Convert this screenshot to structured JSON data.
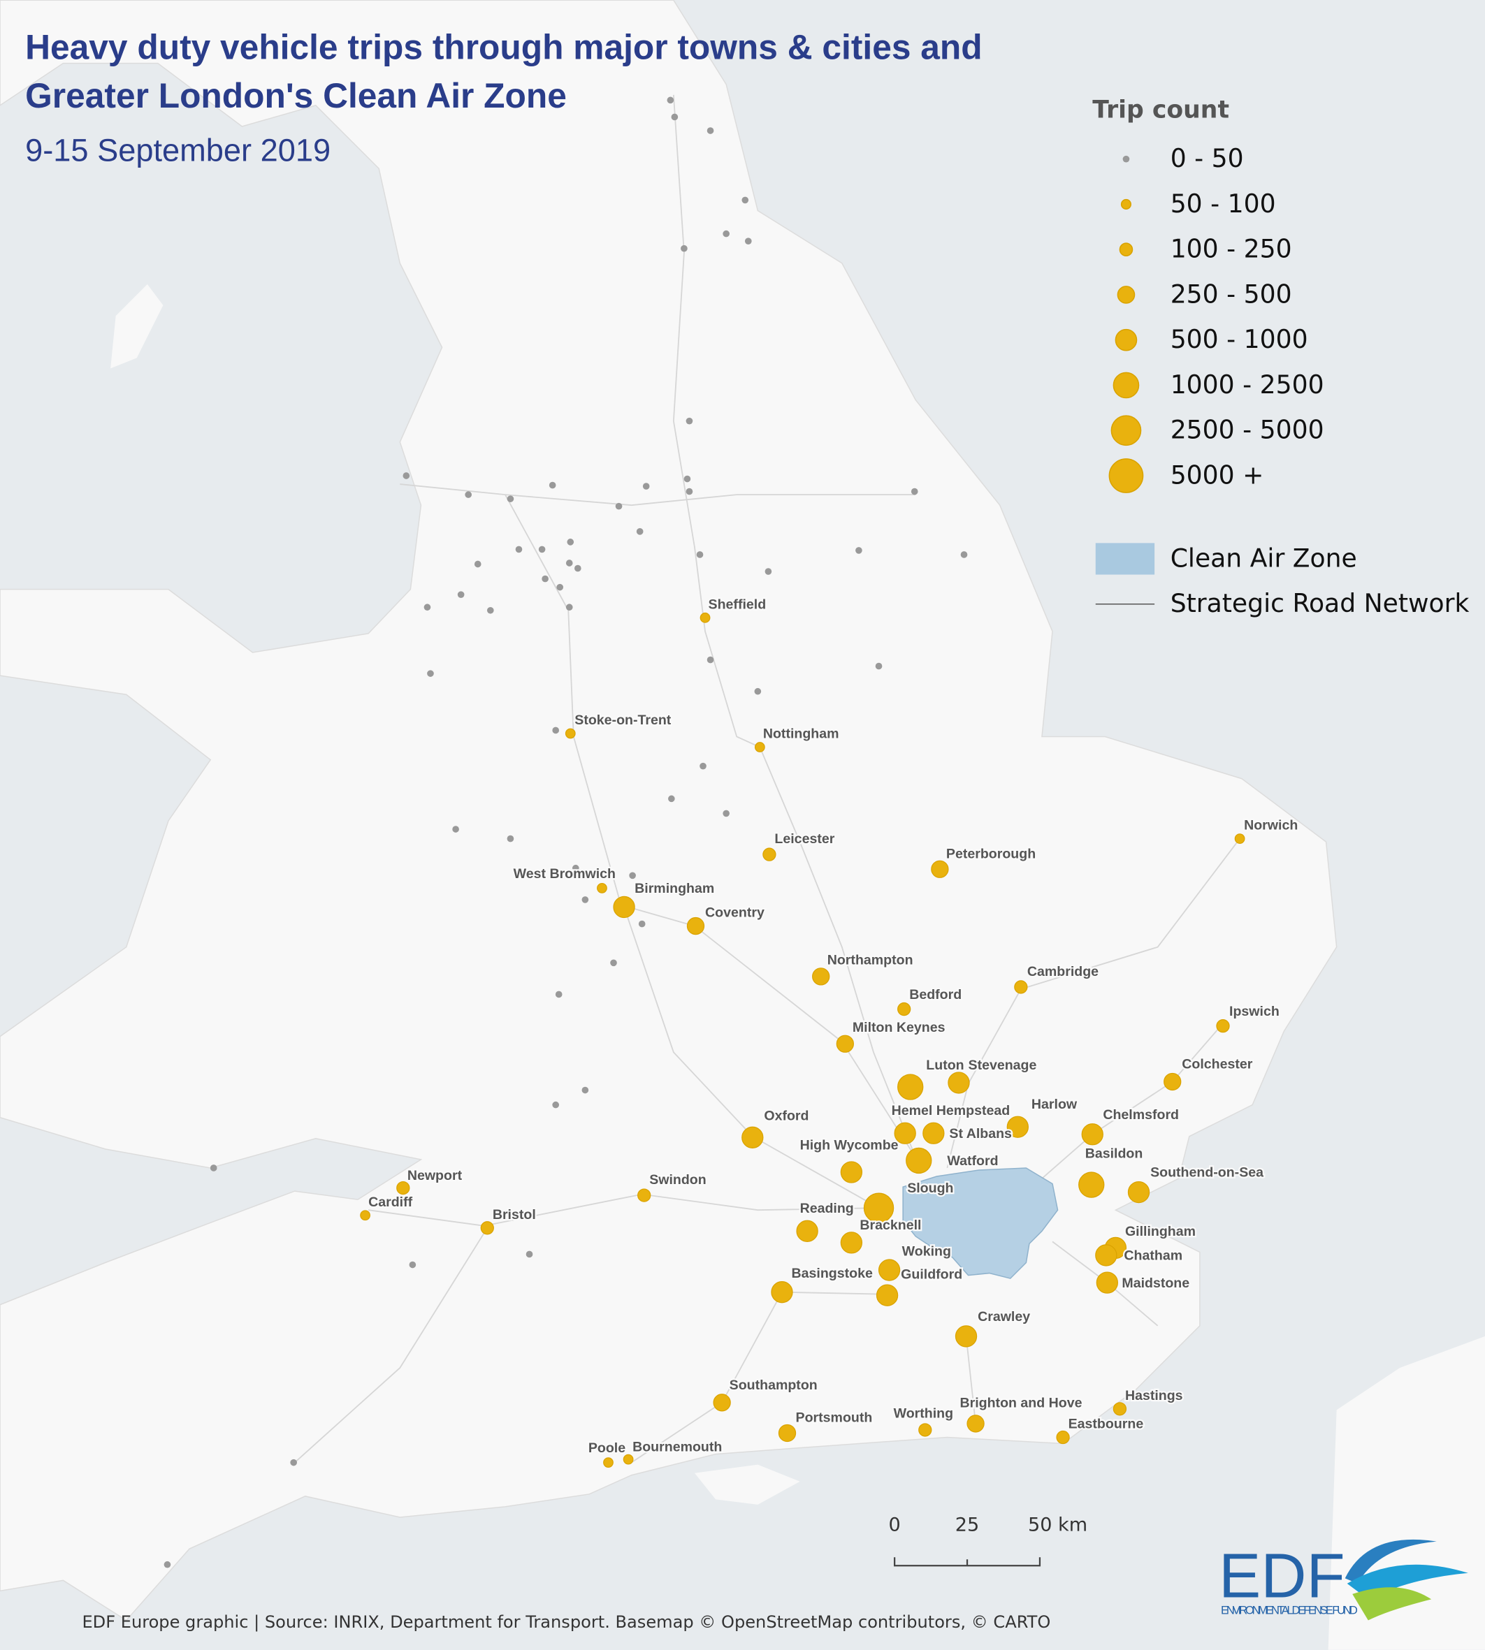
{
  "header": {
    "title_line1": "Heavy duty vehicle trips through major towns & cities and",
    "title_line2": "Greater London's Clean Air Zone",
    "subtitle": "9-15 September 2019"
  },
  "legend": {
    "title": "Trip count",
    "items": [
      "0 - 50",
      "50 - 100",
      "100 - 250",
      "250 - 500",
      "500 - 1000",
      "1000 - 2500",
      "2500 - 5000",
      "5000 +"
    ],
    "clean_air_zone": "Clean Air Zone",
    "road_network": "Strategic Road Network"
  },
  "cities": [
    {
      "name": "Sheffield",
      "trip_count": "50 - 100"
    },
    {
      "name": "Stoke-on-Trent",
      "trip_count": "50 - 100"
    },
    {
      "name": "Nottingham",
      "trip_count": "50 - 100"
    },
    {
      "name": "Leicester",
      "trip_count": "100 - 250"
    },
    {
      "name": "Peterborough",
      "trip_count": "250 - 500"
    },
    {
      "name": "Norwich",
      "trip_count": "50 - 100"
    },
    {
      "name": "West Bromwich",
      "trip_count": "50 - 100"
    },
    {
      "name": "Birmingham",
      "trip_count": "500 - 1000"
    },
    {
      "name": "Coventry",
      "trip_count": "250 - 500"
    },
    {
      "name": "Northampton",
      "trip_count": "250 - 500"
    },
    {
      "name": "Bedford",
      "trip_count": "100 - 250"
    },
    {
      "name": "Cambridge",
      "trip_count": "100 - 250"
    },
    {
      "name": "Milton Keynes",
      "trip_count": "250 - 500"
    },
    {
      "name": "Ipswich",
      "trip_count": "100 - 250"
    },
    {
      "name": "Luton",
      "trip_count": "1000 - 2500"
    },
    {
      "name": "Stevenage",
      "trip_count": "500 - 1000"
    },
    {
      "name": "Colchester",
      "trip_count": "250 - 500"
    },
    {
      "name": "Hemel Hempstead",
      "trip_count": "500 - 1000"
    },
    {
      "name": "Harlow",
      "trip_count": "500 - 1000"
    },
    {
      "name": "Chelmsford",
      "trip_count": "500 - 1000"
    },
    {
      "name": "Oxford",
      "trip_count": "500 - 1000"
    },
    {
      "name": "St Albans",
      "trip_count": "500 - 1000"
    },
    {
      "name": "High Wycombe",
      "trip_count": "500 - 1000"
    },
    {
      "name": "Watford",
      "trip_count": "1000 - 2500"
    },
    {
      "name": "Basildon",
      "trip_count": "1000 - 2500"
    },
    {
      "name": "Southend-on-Sea",
      "trip_count": "500 - 1000"
    },
    {
      "name": "Newport",
      "trip_count": "100 - 250"
    },
    {
      "name": "Cardiff",
      "trip_count": "50 - 100"
    },
    {
      "name": "Swindon",
      "trip_count": "100 - 250"
    },
    {
      "name": "Slough",
      "trip_count": "2500 - 5000"
    },
    {
      "name": "Bristol",
      "trip_count": "100 - 250"
    },
    {
      "name": "Reading",
      "trip_count": "500 - 1000"
    },
    {
      "name": "Bracknell",
      "trip_count": "500 - 1000"
    },
    {
      "name": "Gillingham",
      "trip_count": "500 - 1000"
    },
    {
      "name": "Chatham",
      "trip_count": "500 - 1000"
    },
    {
      "name": "Woking",
      "trip_count": "500 - 1000"
    },
    {
      "name": "Guildford",
      "trip_count": "500 - 1000"
    },
    {
      "name": "Basingstoke",
      "trip_count": "500 - 1000"
    },
    {
      "name": "Maidstone",
      "trip_count": "500 - 1000"
    },
    {
      "name": "Crawley",
      "trip_count": "500 - 1000"
    },
    {
      "name": "Southampton",
      "trip_count": "250 - 500"
    },
    {
      "name": "Portsmouth",
      "trip_count": "250 - 500"
    },
    {
      "name": "Worthing",
      "trip_count": "100 - 250"
    },
    {
      "name": "Brighton and Hove",
      "trip_count": "250 - 500"
    },
    {
      "name": "Hastings",
      "trip_count": "100 - 250"
    },
    {
      "name": "Eastbourne",
      "trip_count": "100 - 250"
    },
    {
      "name": "Poole",
      "trip_count": "50 - 100"
    },
    {
      "name": "Bournemouth",
      "trip_count": "50 - 100"
    }
  ],
  "scale_bar": {
    "labels": [
      "0",
      "25",
      "50 km"
    ]
  },
  "footer": "EDF Europe graphic | Source: INRIX, Department for Transport. Basemap © OpenStreetMap contributors, © CARTO",
  "logo": {
    "name": "EDF",
    "full_name": "ENVIRONMENTAL DEFENSE FUND"
  }
}
